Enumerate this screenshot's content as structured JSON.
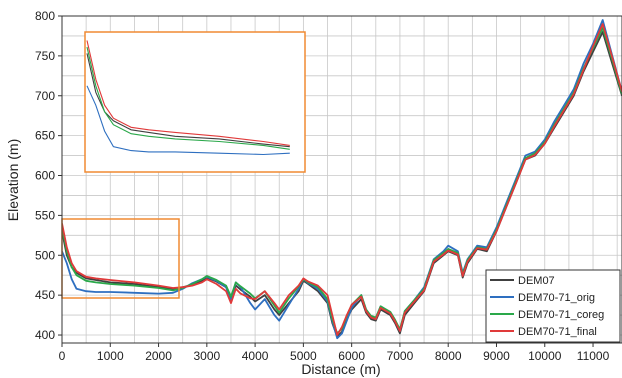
{
  "chart_data": {
    "type": "line",
    "title": "",
    "xlabel": "Distance (m)",
    "ylabel": "Elevation (m)",
    "xlim": [
      0,
      11600
    ],
    "ylim": [
      390,
      800
    ],
    "xticks": [
      0,
      1000,
      2000,
      3000,
      4000,
      5000,
      6000,
      7000,
      8000,
      9000,
      10000,
      11000
    ],
    "yticks": [
      400,
      450,
      500,
      550,
      600,
      650,
      700,
      750,
      800
    ],
    "grid": true,
    "legend_position": "bottom-right",
    "series": [
      {
        "name": "DEM07",
        "color": "#404040",
        "x": [
          0,
          100,
          200,
          300,
          500,
          700,
          1000,
          1500,
          2000,
          2300,
          2500,
          2700,
          2900,
          3000,
          3200,
          3400,
          3500,
          3600,
          3700,
          3900,
          4000,
          4200,
          4400,
          4500,
          4700,
          4900,
          5000,
          5100,
          5300,
          5500,
          5600,
          5700,
          5800,
          5900,
          6000,
          6200,
          6300,
          6400,
          6500,
          6600,
          6800,
          6900,
          7000,
          7100,
          7300,
          7500,
          7700,
          7900,
          8000,
          8200,
          8300,
          8400,
          8600,
          8800,
          9000,
          9200,
          9400,
          9600,
          9800,
          10000,
          10200,
          10400,
          10600,
          10800,
          11000,
          11200,
          11400,
          11600
        ],
        "y": [
          530,
          500,
          485,
          478,
          471,
          469,
          466,
          464,
          460,
          458,
          460,
          463,
          468,
          472,
          467,
          460,
          445,
          462,
          457,
          448,
          442,
          450,
          432,
          425,
          440,
          455,
          468,
          464,
          455,
          440,
          415,
          398,
          404,
          420,
          432,
          445,
          428,
          420,
          418,
          432,
          425,
          415,
          402,
          425,
          440,
          455,
          490,
          500,
          505,
          500,
          472,
          490,
          508,
          505,
          530,
          560,
          590,
          620,
          625,
          640,
          660,
          680,
          700,
          730,
          755,
          780,
          740,
          700
        ]
      },
      {
        "name": "DEM70-71_orig",
        "color": "#2e6fc0",
        "x": [
          0,
          100,
          200,
          300,
          500,
          700,
          1000,
          1500,
          2000,
          2300,
          2500,
          2700,
          2900,
          3000,
          3200,
          3400,
          3500,
          3600,
          3700,
          3900,
          4000,
          4200,
          4400,
          4500,
          4700,
          4900,
          5000,
          5100,
          5300,
          5500,
          5600,
          5700,
          5800,
          5900,
          6000,
          6200,
          6300,
          6400,
          6500,
          6600,
          6800,
          6900,
          7000,
          7100,
          7300,
          7500,
          7700,
          7900,
          8000,
          8200,
          8300,
          8400,
          8600,
          8800,
          9000,
          9200,
          9400,
          9600,
          9800,
          10000,
          10200,
          10400,
          10600,
          10800,
          11000,
          11200,
          11400,
          11600
        ],
        "y": [
          505,
          490,
          470,
          458,
          455,
          454,
          454,
          453,
          452,
          453,
          458,
          465,
          470,
          473,
          468,
          460,
          443,
          466,
          460,
          440,
          432,
          445,
          425,
          418,
          438,
          458,
          470,
          465,
          458,
          442,
          418,
          396,
          402,
          418,
          434,
          450,
          432,
          423,
          420,
          436,
          428,
          418,
          405,
          430,
          444,
          460,
          495,
          505,
          512,
          505,
          478,
          495,
          512,
          510,
          535,
          565,
          595,
          625,
          630,
          645,
          668,
          688,
          708,
          740,
          765,
          795,
          750,
          705
        ]
      },
      {
        "name": "DEM70-71_coreg",
        "color": "#2aa84a",
        "x": [
          0,
          100,
          200,
          300,
          500,
          700,
          1000,
          1500,
          2000,
          2300,
          2500,
          2700,
          2900,
          3000,
          3200,
          3400,
          3500,
          3600,
          3700,
          3900,
          4000,
          4200,
          4400,
          4500,
          4700,
          4900,
          5000,
          5100,
          5300,
          5500,
          5600,
          5700,
          5800,
          5900,
          6000,
          6200,
          6300,
          6400,
          6500,
          6600,
          6800,
          6900,
          7000,
          7100,
          7300,
          7500,
          7700,
          7900,
          8000,
          8200,
          8300,
          8400,
          8600,
          8800,
          9000,
          9200,
          9400,
          9600,
          9800,
          10000,
          10200,
          10400,
          10600,
          10800,
          11000,
          11200,
          11400,
          11600
        ],
        "y": [
          535,
          505,
          485,
          475,
          468,
          466,
          464,
          462,
          459,
          456,
          459,
          464,
          470,
          474,
          469,
          462,
          448,
          466,
          461,
          452,
          446,
          455,
          437,
          428,
          446,
          461,
          470,
          466,
          460,
          445,
          420,
          402,
          408,
          424,
          438,
          450,
          432,
          424,
          422,
          436,
          429,
          419,
          407,
          430,
          444,
          458,
          494,
          503,
          508,
          503,
          476,
          494,
          510,
          508,
          532,
          562,
          592,
          622,
          628,
          642,
          664,
          684,
          704,
          734,
          760,
          785,
          745,
          702
        ]
      },
      {
        "name": "DEM70-71_final",
        "color": "#e03a3a",
        "x": [
          0,
          100,
          200,
          300,
          500,
          700,
          1000,
          1500,
          2000,
          2300,
          2500,
          2700,
          2900,
          3000,
          3200,
          3400,
          3500,
          3600,
          3700,
          3900,
          4000,
          4200,
          4400,
          4500,
          4700,
          4900,
          5000,
          5100,
          5300,
          5500,
          5600,
          5700,
          5800,
          5900,
          6000,
          6200,
          6300,
          6400,
          6500,
          6600,
          6800,
          6900,
          7000,
          7100,
          7300,
          7500,
          7700,
          7900,
          8000,
          8200,
          8300,
          8400,
          8600,
          8800,
          9000,
          9200,
          9400,
          9600,
          9800,
          10000,
          10200,
          10400,
          10600,
          10800,
          11000,
          11200,
          11400,
          11600
        ],
        "y": [
          540,
          510,
          490,
          480,
          473,
          471,
          469,
          466,
          462,
          459,
          460,
          462,
          466,
          470,
          464,
          455,
          440,
          458,
          452,
          446,
          445,
          455,
          440,
          432,
          450,
          462,
          471,
          467,
          462,
          450,
          425,
          400,
          410,
          425,
          438,
          448,
          430,
          422,
          420,
          434,
          427,
          417,
          405,
          428,
          442,
          456,
          492,
          501,
          506,
          501,
          474,
          492,
          509,
          507,
          530,
          560,
          590,
          620,
          626,
          640,
          662,
          682,
          702,
          732,
          762,
          790,
          748,
          705
        ]
      }
    ]
  }
}
